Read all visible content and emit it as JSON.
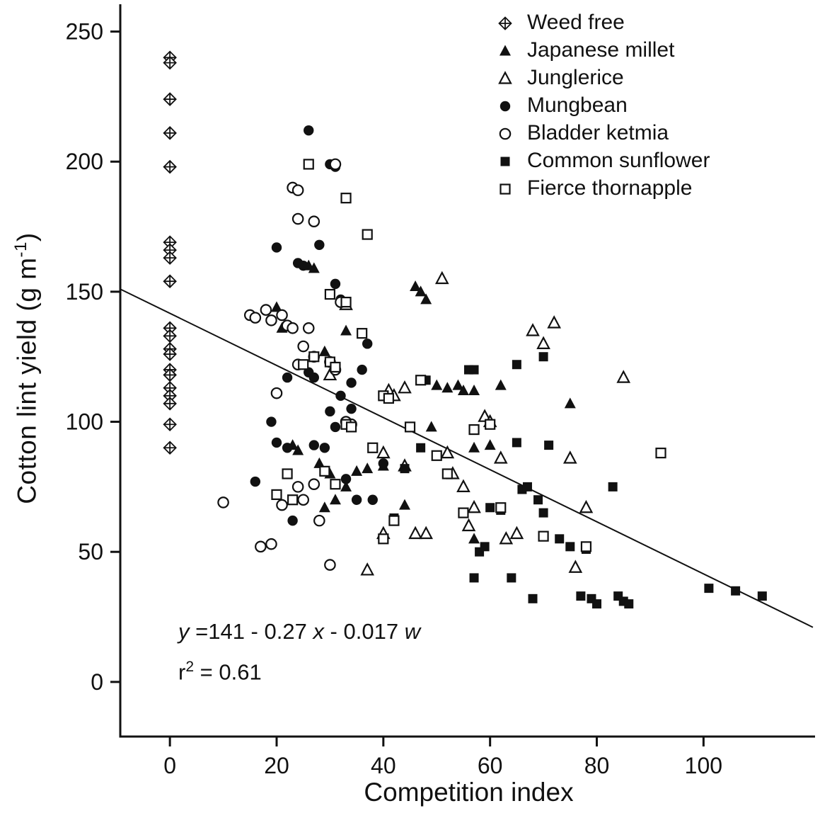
{
  "chart_data": {
    "type": "scatter",
    "title": "",
    "xlabel": "Competition index",
    "ylabel": "Cotton lint yield (g m⁻¹)",
    "ylabel_parts": {
      "pre": "Cotton lint yield  (g m",
      "sup": "-1",
      "post": ")"
    },
    "xlim": [
      -9.3,
      120.9
    ],
    "ylim": [
      -21,
      260.5
    ],
    "x_ticks": [
      0,
      20,
      40,
      60,
      80,
      100
    ],
    "y_ticks": [
      0,
      50,
      100,
      150,
      200,
      250
    ],
    "grid": false,
    "legend_position": "top-right-inside",
    "regression_line": {
      "x1": -9.3,
      "y1": 151,
      "x2": 120.5,
      "y2": 21
    },
    "series": [
      {
        "name": "Weed free",
        "symbol": "diamond-plus",
        "points": [
          [
            0,
            240
          ],
          [
            0,
            238
          ],
          [
            0,
            224
          ],
          [
            0,
            211
          ],
          [
            0,
            198
          ],
          [
            0,
            169
          ],
          [
            0,
            166
          ],
          [
            0,
            163
          ],
          [
            0,
            154
          ],
          [
            0,
            136
          ],
          [
            0,
            133
          ],
          [
            0,
            128
          ],
          [
            0,
            126
          ],
          [
            0,
            120
          ],
          [
            0,
            118
          ],
          [
            0,
            113
          ],
          [
            0,
            110
          ],
          [
            0,
            107
          ],
          [
            0,
            99
          ],
          [
            0,
            90
          ]
        ]
      },
      {
        "name": "Japanese millet",
        "symbol": "triangle-filled",
        "points": [
          [
            20,
            144
          ],
          [
            21,
            136
          ],
          [
            26,
            160
          ],
          [
            27,
            159
          ],
          [
            29,
            127
          ],
          [
            33,
            135
          ],
          [
            46,
            152
          ],
          [
            47,
            150
          ],
          [
            48,
            147
          ],
          [
            50,
            114
          ],
          [
            52,
            113
          ],
          [
            54,
            114
          ],
          [
            55,
            112
          ],
          [
            57,
            112
          ],
          [
            49,
            98
          ],
          [
            57,
            90
          ],
          [
            60,
            91
          ],
          [
            62,
            114
          ],
          [
            70,
            130
          ],
          [
            75,
            107
          ],
          [
            23,
            91
          ],
          [
            24,
            89
          ],
          [
            28,
            84
          ],
          [
            30,
            80
          ],
          [
            31,
            70
          ],
          [
            33,
            75
          ],
          [
            35,
            81
          ],
          [
            37,
            82
          ],
          [
            40,
            83
          ],
          [
            44,
            68
          ],
          [
            57,
            55
          ],
          [
            29,
            67
          ]
        ]
      },
      {
        "name": "Junglerice",
        "symbol": "triangle-open",
        "points": [
          [
            30,
            118
          ],
          [
            33,
            145
          ],
          [
            37,
            43
          ],
          [
            40,
            88
          ],
          [
            41,
            112
          ],
          [
            42,
            110
          ],
          [
            44,
            83
          ],
          [
            46,
            57
          ],
          [
            48,
            57
          ],
          [
            51,
            155
          ],
          [
            52,
            88
          ],
          [
            53,
            80
          ],
          [
            55,
            75
          ],
          [
            56,
            60
          ],
          [
            57,
            67
          ],
          [
            59,
            102
          ],
          [
            60,
            100
          ],
          [
            62,
            86
          ],
          [
            63,
            55
          ],
          [
            65,
            57
          ],
          [
            68,
            135
          ],
          [
            70,
            130
          ],
          [
            72,
            138
          ],
          [
            75,
            86
          ],
          [
            76,
            44
          ],
          [
            78,
            67
          ],
          [
            85,
            117
          ],
          [
            44,
            113
          ],
          [
            40,
            57
          ]
        ]
      },
      {
        "name": "Mungbean",
        "symbol": "circle-filled",
        "points": [
          [
            26,
            212
          ],
          [
            30,
            199
          ],
          [
            31,
            198
          ],
          [
            20,
            167
          ],
          [
            24,
            161
          ],
          [
            25,
            160
          ],
          [
            28,
            168
          ],
          [
            31,
            153
          ],
          [
            32,
            147
          ],
          [
            26,
            119
          ],
          [
            27,
            117
          ],
          [
            30,
            104
          ],
          [
            31,
            98
          ],
          [
            32,
            110
          ],
          [
            33,
            99
          ],
          [
            34,
            115
          ],
          [
            36,
            120
          ],
          [
            37,
            130
          ],
          [
            19,
            100
          ],
          [
            20,
            92
          ],
          [
            22,
            90
          ],
          [
            23,
            62
          ],
          [
            27,
            91
          ],
          [
            29,
            90
          ],
          [
            33,
            78
          ],
          [
            35,
            70
          ],
          [
            38,
            70
          ],
          [
            40,
            84
          ],
          [
            16,
            77
          ],
          [
            22,
            117
          ],
          [
            34,
            105
          ]
        ]
      },
      {
        "name": "Bladder ketmia",
        "symbol": "circle-open",
        "points": [
          [
            23,
            190
          ],
          [
            24,
            189
          ],
          [
            24,
            178
          ],
          [
            27,
            177
          ],
          [
            31,
            199
          ],
          [
            15,
            141
          ],
          [
            16,
            140
          ],
          [
            18,
            143
          ],
          [
            19,
            139
          ],
          [
            21,
            141
          ],
          [
            22,
            137
          ],
          [
            23,
            136
          ],
          [
            20,
            111
          ],
          [
            24,
            122
          ],
          [
            25,
            129
          ],
          [
            27,
            125
          ],
          [
            30,
            123
          ],
          [
            31,
            120
          ],
          [
            32,
            146
          ],
          [
            10,
            69
          ],
          [
            17,
            52
          ],
          [
            19,
            53
          ],
          [
            21,
            68
          ],
          [
            24,
            75
          ],
          [
            25,
            70
          ],
          [
            27,
            76
          ],
          [
            28,
            62
          ],
          [
            30,
            45
          ],
          [
            33,
            100
          ],
          [
            34,
            99
          ],
          [
            26,
            136
          ]
        ]
      },
      {
        "name": "Common sunflower",
        "symbol": "square-filled",
        "points": [
          [
            48,
            116
          ],
          [
            56,
            120
          ],
          [
            65,
            122
          ],
          [
            70,
            125
          ],
          [
            60,
            67
          ],
          [
            62,
            66
          ],
          [
            64,
            40
          ],
          [
            66,
            74
          ],
          [
            67,
            75
          ],
          [
            68,
            32
          ],
          [
            69,
            70
          ],
          [
            70,
            65
          ],
          [
            71,
            91
          ],
          [
            73,
            55
          ],
          [
            75,
            52
          ],
          [
            77,
            33
          ],
          [
            78,
            51
          ],
          [
            79,
            32
          ],
          [
            80,
            30
          ],
          [
            83,
            75
          ],
          [
            84,
            33
          ],
          [
            85,
            31
          ],
          [
            86,
            30
          ],
          [
            101,
            36
          ],
          [
            106,
            35
          ],
          [
            111,
            33
          ],
          [
            57,
            40
          ],
          [
            58,
            50
          ],
          [
            59,
            52
          ],
          [
            65,
            92
          ],
          [
            42,
            63
          ],
          [
            44,
            82
          ],
          [
            47,
            90
          ],
          [
            57,
            120
          ]
        ]
      },
      {
        "name": "Fierce thornapple",
        "symbol": "square-open",
        "points": [
          [
            26,
            199
          ],
          [
            33,
            186
          ],
          [
            37,
            172
          ],
          [
            30,
            149
          ],
          [
            33,
            146
          ],
          [
            36,
            134
          ],
          [
            40,
            110
          ],
          [
            41,
            109
          ],
          [
            47,
            116
          ],
          [
            30,
            123
          ],
          [
            31,
            121
          ],
          [
            33,
            99
          ],
          [
            34,
            98
          ],
          [
            20,
            72
          ],
          [
            22,
            80
          ],
          [
            23,
            70
          ],
          [
            29,
            81
          ],
          [
            31,
            76
          ],
          [
            38,
            90
          ],
          [
            40,
            55
          ],
          [
            42,
            62
          ],
          [
            45,
            98
          ],
          [
            50,
            87
          ],
          [
            52,
            80
          ],
          [
            55,
            65
          ],
          [
            57,
            97
          ],
          [
            60,
            99
          ],
          [
            62,
            67
          ],
          [
            70,
            56
          ],
          [
            78,
            52
          ],
          [
            92,
            88
          ],
          [
            25,
            122
          ],
          [
            27,
            125
          ]
        ]
      }
    ]
  },
  "annotation": {
    "eq": {
      "y": "y",
      "p1": " =141 - 0.27 ",
      "x": "x",
      "p2": " - 0.017 ",
      "w": "w"
    },
    "r2": {
      "r": "r",
      "sup": "2",
      "rest": " = 0.61"
    }
  }
}
